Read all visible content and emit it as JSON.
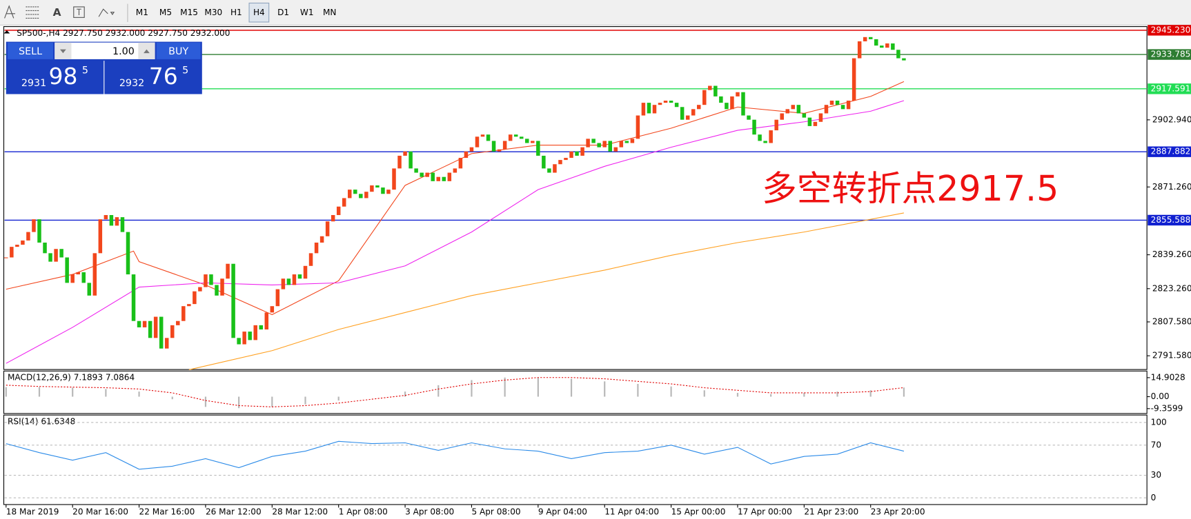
{
  "toolbar": {
    "font_button": "A",
    "timeframes": [
      "M1",
      "M5",
      "M15",
      "M30",
      "H1",
      "H4",
      "D1",
      "W1",
      "MN"
    ]
  },
  "trade_panel": {
    "sell": "SELL",
    "buy": "BUY",
    "lots": "1.00",
    "bid": {
      "big": "2931",
      "pips": "98",
      "point": "5"
    },
    "ask": {
      "big": "2932",
      "pips": "76",
      "point": "5"
    }
  },
  "chart_data": {
    "type": "candlestick",
    "title": "SP500-,H4 2927.750 2932.000 2927.750 2932.000",
    "annotation": "多空转折点2917.5",
    "up_color": "#f2461c",
    "down_color": "#19c019",
    "xlim": [
      0,
      162
    ],
    "xticks": [
      {
        "value": 0,
        "label": "18 Mar 2019"
      },
      {
        "value": 12,
        "label": "20 Mar 16:00"
      },
      {
        "value": 24,
        "label": "22 Mar 16:00"
      },
      {
        "value": 36,
        "label": "26 Mar 12:00"
      },
      {
        "value": 48,
        "label": "28 Mar 12:00"
      },
      {
        "value": 60,
        "label": "1 Apr 08:00"
      },
      {
        "value": 72,
        "label": "3 Apr 08:00"
      },
      {
        "value": 84,
        "label": "5 Apr 08:00"
      },
      {
        "value": 96,
        "label": "9 Apr 04:00"
      },
      {
        "value": 108,
        "label": "11 Apr 04:00"
      },
      {
        "value": 120,
        "label": "15 Apr 00:00"
      },
      {
        "value": 132,
        "label": "17 Apr 00:00"
      },
      {
        "value": 144,
        "label": "21 Apr 23:00"
      },
      {
        "value": 156,
        "label": "23 Apr 20:00"
      }
    ],
    "ylim": [
      2785.1,
      2946.6
    ],
    "yticks": [
      {
        "value": 2902.94,
        "label": "2902.940"
      },
      {
        "value": 2871.26,
        "label": "2871.260"
      },
      {
        "value": 2839.26,
        "label": "2839.260"
      },
      {
        "value": 2823.26,
        "label": "2823.260"
      },
      {
        "value": 2807.58,
        "label": "2807.580"
      },
      {
        "value": 2791.58,
        "label": "2791.580"
      }
    ],
    "levels": [
      {
        "value": 2945.23,
        "label": "2945.230",
        "color": "#e00000"
      },
      {
        "value": 2933.785,
        "label": "2933.785",
        "color": "#2e7d32"
      },
      {
        "value": 2917.591,
        "label": "2917.591",
        "color": "#22dd55"
      },
      {
        "value": 2887.882,
        "label": "2887.882",
        "color": "#1020d0"
      },
      {
        "value": 2855.588,
        "label": "2855.588",
        "color": "#1020d0"
      }
    ],
    "values": [
      2838,
      2843,
      2844,
      2846,
      2850,
      2856,
      2845,
      2840,
      2836,
      2842,
      2838,
      2826,
      2830,
      2831,
      2826,
      2820,
      2840,
      2856,
      2858,
      2853,
      2857,
      2850,
      2830,
      2808,
      2805,
      2808,
      2800,
      2810,
      2795,
      2800,
      2806,
      2808,
      2815,
      2816,
      2822,
      2824,
      2830,
      2825,
      2820,
      2828,
      2835,
      2800,
      2797,
      2803,
      2799,
      2806,
      2804,
      2812,
      2815,
      2823,
      2828,
      2825,
      2830,
      2828,
      2834,
      2840,
      2845,
      2848,
      2855,
      2858,
      2862,
      2866,
      2870,
      2868,
      2866,
      2869,
      2872,
      2871,
      2868,
      2870,
      2880,
      2886,
      2888,
      2880,
      2878,
      2876,
      2878,
      2874,
      2876,
      2874,
      2878,
      2880,
      2885,
      2888,
      2890,
      2895,
      2896,
      2893,
      2888,
      2889,
      2893,
      2896,
      2895,
      2894,
      2892,
      2893,
      2886,
      2880,
      2878,
      2882,
      2884,
      2885,
      2888,
      2886,
      2890,
      2894,
      2892,
      2890,
      2893,
      2888,
      2890,
      2893,
      2892,
      2894,
      2905,
      2911,
      2906,
      2910,
      2911,
      2912,
      2911,
      2909,
      2903,
      2905,
      2908,
      2910,
      2917,
      2919,
      2914,
      2911,
      2908,
      2914,
      2916,
      2905,
      2903,
      2896,
      2893,
      2892,
      2898,
      2903,
      2906,
      2908,
      2910,
      2906,
      2904,
      2900,
      2902,
      2906,
      2910,
      2912,
      2910,
      2908,
      2912,
      2932,
      2940,
      2942,
      2941,
      2938,
      2937,
      2939,
      2936,
      2932,
      2931
    ],
    "overlays": [
      {
        "color": "#f2461c",
        "x": [
          0,
          12,
          23,
          24,
          36,
          48,
          60,
          72,
          84,
          96,
          108,
          120,
          132,
          144,
          156,
          162
        ],
        "values": [
          2823,
          2830,
          2841,
          2836,
          2825,
          2811,
          2827,
          2872,
          2887,
          2891,
          2891,
          2899,
          2909,
          2906,
          2914,
          2921
        ]
      },
      {
        "color": "#ee22ee",
        "x": [
          0,
          12,
          24,
          36,
          48,
          60,
          72,
          84,
          96,
          108,
          120,
          132,
          144,
          156,
          162
        ],
        "values": [
          2788,
          2805,
          2824,
          2826,
          2825,
          2826,
          2834,
          2850,
          2870,
          2881,
          2890,
          2898,
          2902,
          2907,
          2912
        ]
      },
      {
        "color": "#ffa020",
        "x": [
          33,
          48,
          60,
          72,
          84,
          96,
          108,
          120,
          132,
          144,
          156,
          162
        ],
        "values": [
          2785,
          2794,
          2804,
          2812,
          2820,
          2826,
          2832,
          2839,
          2845,
          2850,
          2856,
          2859
        ]
      }
    ],
    "macd": {
      "title": "MACD(12,26,9) 7.1893 7.0864",
      "ylim": [
        -12.6,
        19.5
      ],
      "yticks": [
        14.9028,
        {
          "value": 0,
          "label": "0.00"
        },
        -9.3599
      ],
      "x": [
        0,
        6,
        12,
        18,
        24,
        30,
        36,
        42,
        48,
        54,
        60,
        66,
        72,
        78,
        84,
        90,
        96,
        102,
        108,
        114,
        120,
        126,
        132,
        138,
        144,
        150,
        156,
        162
      ],
      "histogram": {
        "color": "#b8b8b8",
        "values": [
          7.5,
          7.5,
          7,
          6,
          4,
          -2,
          -8,
          -9,
          -8,
          -6,
          -3,
          0,
          4,
          9,
          13,
          15,
          15,
          14,
          12,
          10,
          8,
          5,
          3,
          2,
          3,
          4,
          5,
          7.2
        ]
      },
      "signal": {
        "color": "#e00000",
        "values": [
          9,
          8,
          7.5,
          7,
          6,
          3,
          -3,
          -7,
          -8,
          -7,
          -5,
          -2,
          1,
          6,
          10,
          13,
          15,
          15,
          14,
          12,
          10,
          7,
          5,
          3,
          3,
          3,
          4,
          7.1
        ]
      }
    },
    "rsi": {
      "title": "RSI(14) 61.6348",
      "ylim": [
        -7.9,
        108.9
      ],
      "yticks": [
        100,
        70,
        30,
        0
      ],
      "color": "#2a8ae8",
      "x": [
        0,
        6,
        12,
        18,
        24,
        30,
        36,
        42,
        48,
        54,
        60,
        66,
        72,
        78,
        84,
        90,
        96,
        102,
        108,
        114,
        120,
        126,
        132,
        138,
        144,
        150,
        156,
        162
      ],
      "values": [
        72,
        60,
        50,
        60,
        38,
        42,
        52,
        40,
        55,
        62,
        75,
        72,
        73,
        63,
        73,
        65,
        62,
        52,
        60,
        62,
        70,
        58,
        67,
        45,
        55,
        58,
        73,
        62
      ]
    }
  }
}
